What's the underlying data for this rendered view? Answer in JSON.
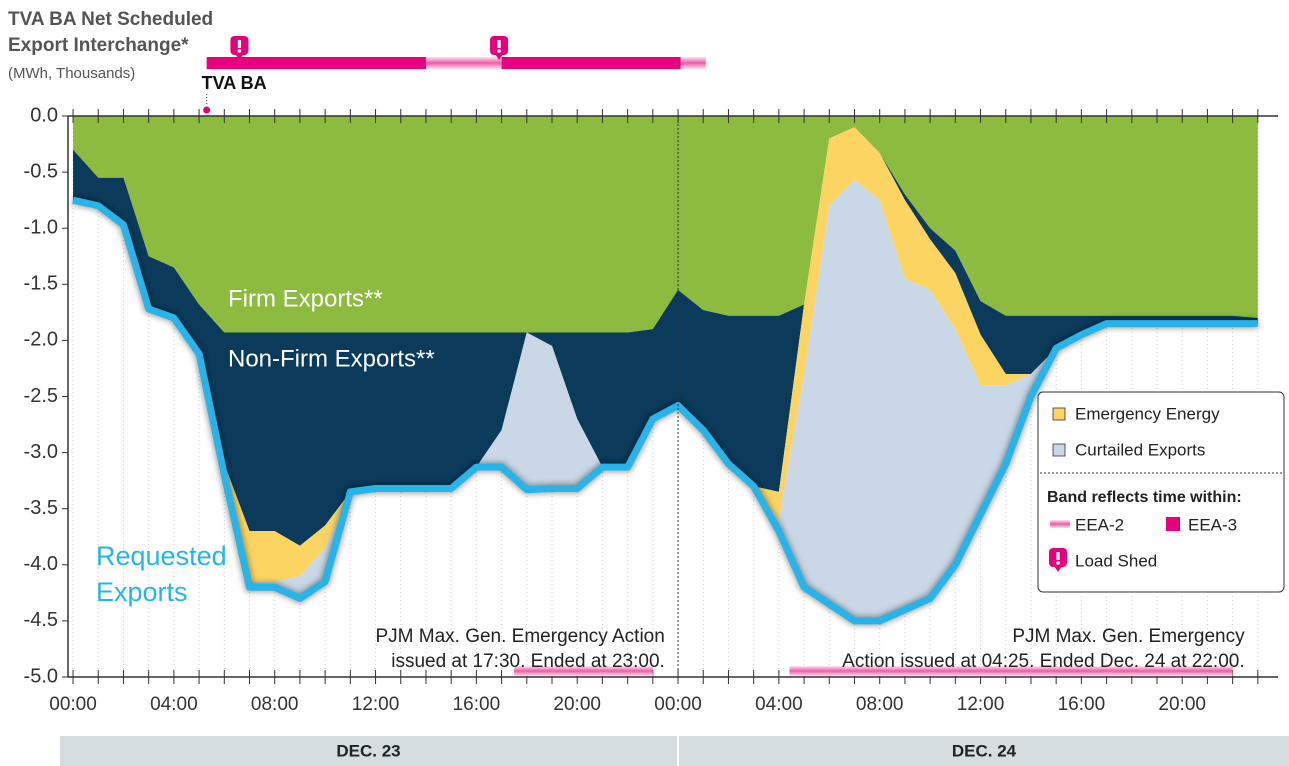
{
  "chart_data": {
    "type": "stacked_area",
    "title_lines": [
      "TVA BA Net Scheduled",
      "Export Interchange*"
    ],
    "subtitle": "(MWh, Thousands)",
    "x": [
      0,
      1,
      2,
      3,
      4,
      5,
      6,
      7,
      8,
      9,
      10,
      11,
      12,
      13,
      14,
      15,
      16,
      17,
      18,
      19,
      20,
      21,
      22,
      23,
      24,
      25,
      26,
      27,
      28,
      29,
      30,
      31,
      32,
      33,
      34,
      35,
      36,
      37,
      38,
      39,
      40,
      41,
      42,
      43,
      44,
      45,
      46,
      47
    ],
    "xlim": [
      -0.2,
      47.8
    ],
    "xticks": [
      {
        "value": 0,
        "label": "00:00"
      },
      {
        "value": 4,
        "label": "04:00"
      },
      {
        "value": 8,
        "label": "08:00"
      },
      {
        "value": 12,
        "label": "12:00"
      },
      {
        "value": 16,
        "label": "16:00"
      },
      {
        "value": 20,
        "label": "20:00"
      },
      {
        "value": 24,
        "label": "00:00"
      },
      {
        "value": 28,
        "label": "04:00"
      },
      {
        "value": 32,
        "label": "08:00"
      },
      {
        "value": 36,
        "label": "12:00"
      },
      {
        "value": 40,
        "label": "16:00"
      },
      {
        "value": 44,
        "label": "20:00"
      }
    ],
    "x_minor_ticks": [
      0,
      1,
      2,
      3,
      4,
      5,
      6,
      7,
      8,
      9,
      10,
      11,
      12,
      13,
      14,
      15,
      16,
      17,
      18,
      19,
      20,
      21,
      22,
      23,
      24,
      25,
      26,
      27,
      28,
      29,
      30,
      31,
      32,
      33,
      34,
      35,
      36,
      37,
      38,
      39,
      40,
      41,
      42,
      43,
      44,
      45,
      46,
      47
    ],
    "ylim": [
      -5,
      0
    ],
    "yticks": [
      {
        "value": 0,
        "label": "0.0"
      },
      -0.5,
      {
        "value": -1,
        "label": "-1.0"
      },
      -1.5,
      {
        "value": -2,
        "label": "-2.0"
      },
      -2.5,
      {
        "value": -3,
        "label": "-3.0"
      },
      -3.5,
      {
        "value": -4,
        "label": "-4.0"
      },
      -4.5,
      {
        "value": -5,
        "label": "-5.0"
      }
    ],
    "series": [
      {
        "name": "Firm Exports**",
        "color": "#8dbb3f",
        "stack": true,
        "values": [
          -0.3,
          -0.55,
          -0.55,
          -1.25,
          -1.35,
          -1.68,
          -1.93,
          -1.93,
          -1.93,
          -1.93,
          -1.93,
          -1.93,
          -1.93,
          -1.93,
          -1.93,
          -1.93,
          -1.93,
          -1.93,
          -1.93,
          -1.93,
          -1.93,
          -1.93,
          -1.93,
          -1.9,
          -1.55,
          -1.73,
          -1.78,
          -1.78,
          -1.78,
          -1.68,
          -0.2,
          -0.1,
          -0.33,
          -0.7,
          -1.0,
          -1.2,
          -1.65,
          -1.78,
          -1.78,
          -1.78,
          -1.78,
          -1.78,
          -1.78,
          -1.78,
          -1.78,
          -1.78,
          -1.78,
          -1.8
        ]
      },
      {
        "name": "Non-Firm Exports**",
        "color": "#0b3a5a",
        "stack": true,
        "values": [
          -0.45,
          -0.25,
          -0.42,
          -0.47,
          -0.45,
          -0.44,
          -1.17,
          -1.77,
          -1.77,
          -1.9,
          -1.72,
          -1.42,
          -1.39,
          -1.39,
          -1.39,
          -1.39,
          -1.2,
          -0.87,
          0,
          -0.12,
          -0.77,
          -1.2,
          -1.2,
          -0.8,
          -1.03,
          -1.07,
          -1.32,
          -1.52,
          -1.57,
          0,
          0,
          0,
          0,
          -0.05,
          -0.1,
          -0.2,
          -0.3,
          -0.52,
          -0.52,
          -0.29,
          -0.17,
          -0.07,
          -0.07,
          -0.07,
          -0.07,
          -0.07,
          -0.07,
          -0.05
        ]
      },
      {
        "name": "Emergency Energy",
        "color": "#fcd462",
        "stack": true,
        "values": [
          0,
          0,
          0,
          0,
          0,
          0,
          -0.1,
          -0.45,
          -0.45,
          -0.27,
          -0.2,
          0,
          0,
          0,
          0,
          0,
          0,
          0,
          0,
          0,
          0,
          0,
          0,
          0,
          0,
          0,
          0,
          0,
          -0.25,
          -0.62,
          -0.6,
          -0.47,
          -0.42,
          -0.7,
          -0.45,
          -0.5,
          -0.45,
          -0.1,
          0,
          0,
          0,
          0,
          0,
          0,
          0,
          0,
          0,
          0
        ]
      },
      {
        "name": "Curtailed Exports",
        "color": "#c9d7e6",
        "stack": true,
        "values": [
          0,
          0,
          0,
          0,
          0,
          0,
          0,
          -0.05,
          -0.05,
          -0.2,
          -0.3,
          0,
          0,
          0,
          0,
          0,
          0,
          -0.33,
          -1.4,
          -1.27,
          -0.62,
          0,
          0,
          0,
          0,
          0,
          0,
          0,
          -0.1,
          -1.9,
          -3.55,
          -3.93,
          -3.75,
          -2.95,
          -2.75,
          -2.1,
          -1.15,
          -0.7,
          -0.2,
          0,
          0,
          0,
          0,
          0,
          0,
          0,
          0,
          0
        ]
      },
      {
        "name": "Requested Exports",
        "color": "#27b4e8",
        "stack": false,
        "values": [
          -0.75,
          -0.8,
          -0.97,
          -1.72,
          -1.8,
          -2.12,
          -3.2,
          -4.2,
          -4.2,
          -4.3,
          -4.15,
          -3.35,
          -3.32,
          -3.32,
          -3.32,
          -3.32,
          -3.13,
          -3.13,
          -3.33,
          -3.32,
          -3.32,
          -3.13,
          -3.13,
          -2.7,
          -2.58,
          -2.8,
          -3.1,
          -3.3,
          -3.7,
          -4.2,
          -4.35,
          -4.5,
          -4.5,
          -4.4,
          -4.3,
          -4.0,
          -3.55,
          -3.1,
          -2.5,
          -2.07,
          -1.95,
          -1.85,
          -1.85,
          -1.85,
          -1.85,
          -1.85,
          -1.85,
          -1.85
        ]
      }
    ],
    "days": [
      {
        "label": "DEC. 23",
        "start": 0
      },
      {
        "label": "DEC. 24",
        "start": 24
      }
    ],
    "legend": {
      "position": "right",
      "band_title": "Band reflects time within:",
      "levels": [
        {
          "name": "EEA-2",
          "color": "#f59bc9"
        },
        {
          "name": "EEA-3",
          "color": "#e6007e"
        }
      ],
      "load_shed": {
        "name": "Load Shed",
        "color": "#e6007e"
      }
    },
    "tva_band": {
      "label": "TVA BA",
      "eea2": [
        [
          14,
          17
        ],
        [
          24.1,
          25.1
        ]
      ],
      "eea3": [
        [
          5.3,
          14
        ],
        [
          17,
          24.1
        ]
      ],
      "load_shed": [
        6.6,
        16.9
      ]
    },
    "annotations": [
      {
        "lines": [
          "PJM Max. Gen. Emergency Action",
          "issued at 17:30. Ended at 23:00."
        ],
        "start": 17.5,
        "end": 23
      },
      {
        "lines": [
          "PJM Max. Gen. Emergency",
          "Action issued at 04:25. Ended Dec. 24 at 22:00."
        ],
        "start": 28.42,
        "end": 46
      }
    ]
  }
}
